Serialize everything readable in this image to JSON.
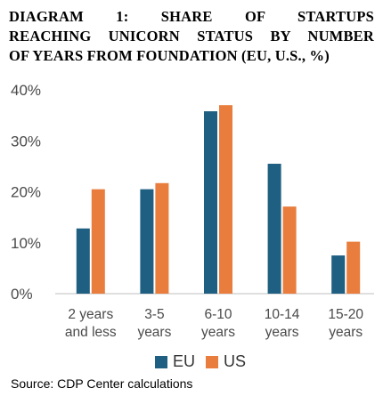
{
  "title_lines": [
    "DIAGRAM 1: SHARE OF STARTUPS",
    "REACHING UNICORN STATUS BY NUMBER",
    "OF YEARS FROM FOUNDATION (EU, U.S., %)"
  ],
  "source": "Source: CDP Center calculations",
  "colors": {
    "EU": "#1f5f82",
    "US": "#e87d3e",
    "axis": "#bfbfbf"
  },
  "chart_data": {
    "type": "bar",
    "title": "DIAGRAM 1: SHARE OF STARTUPS REACHING UNICORN STATUS BY NUMBER OF YEARS FROM FOUNDATION (EU, U.S., %)",
    "categories": [
      [
        "2 years",
        "and less"
      ],
      [
        "3-5",
        "years"
      ],
      [
        "6-10",
        "years"
      ],
      [
        "10-14",
        "years"
      ],
      [
        "15-20",
        "years"
      ]
    ],
    "series": [
      {
        "name": "EU",
        "values": [
          12.8,
          20.5,
          35.8,
          25.5,
          7.5
        ]
      },
      {
        "name": "US",
        "values": [
          20.5,
          21.7,
          37.0,
          17.1,
          10.2
        ]
      }
    ],
    "yticks": [
      "0%",
      "10%",
      "20%",
      "30%",
      "40%"
    ],
    "ylim": [
      0,
      40
    ],
    "grid": false,
    "legend": "bottom"
  }
}
